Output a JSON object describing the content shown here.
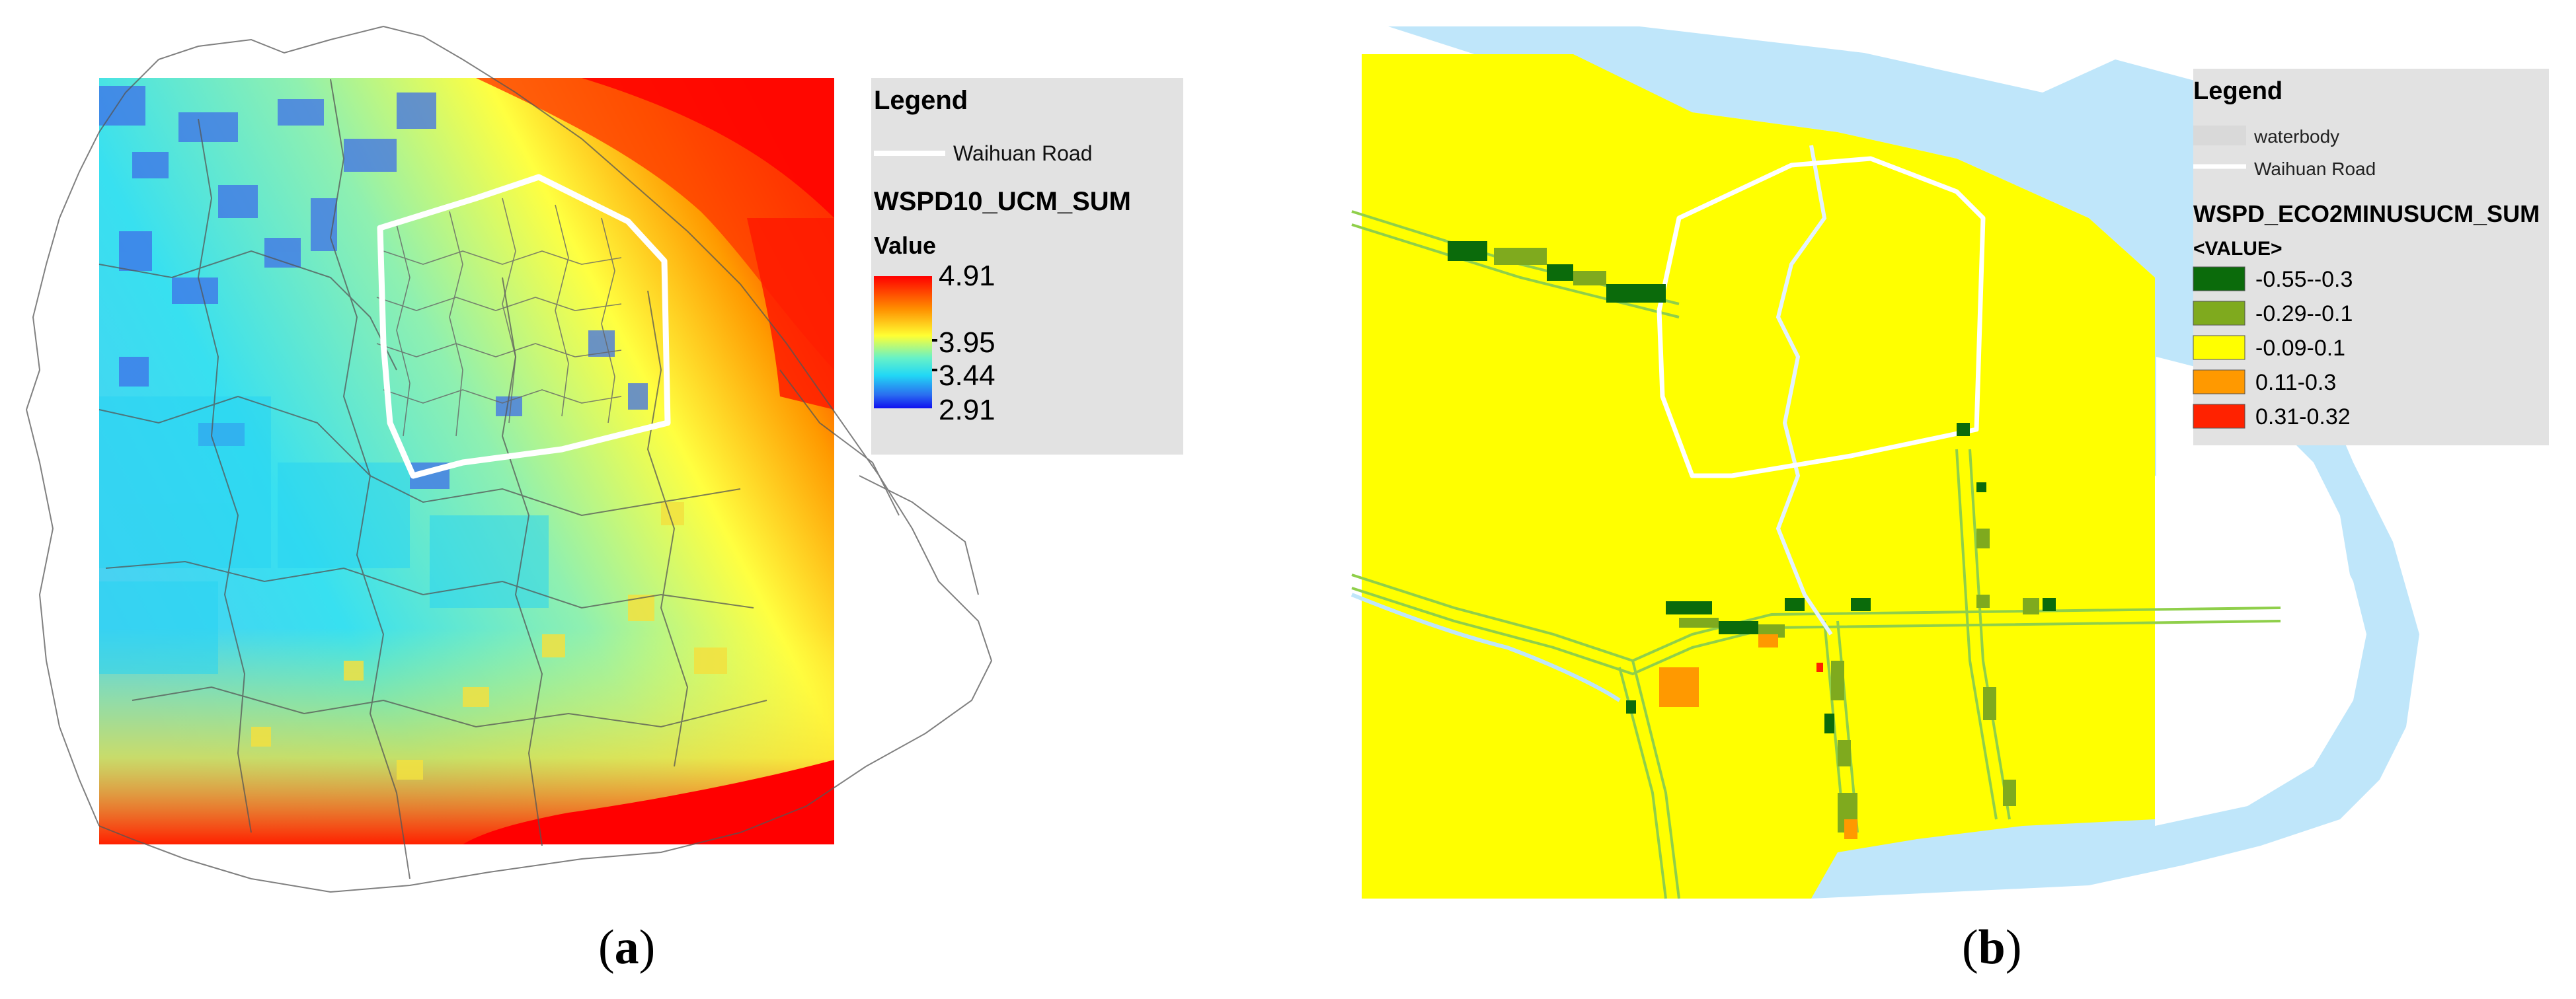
{
  "panels": [
    {
      "id": "a",
      "caption_letter": "a",
      "legend": {
        "title": "Legend",
        "line_item": "Waihuan Road",
        "layer_name": "WSPD10_UCM_SUM",
        "value_label": "Value",
        "ticks": [
          "4.91",
          "3.95",
          "3.44",
          "2.91"
        ],
        "gradient_colors": [
          "#ff0000",
          "#ff8c00",
          "#ffff33",
          "#66f2c8",
          "#22d8f5",
          "#2a6cf0",
          "#1010f0"
        ]
      }
    },
    {
      "id": "b",
      "caption_letter": "b",
      "legend": {
        "title": "Legend",
        "items": [
          "waterbody",
          "Waihuan Road"
        ],
        "layer_name": "WSPD_ECO2MINUSUCM_SUM",
        "value_label": "<VALUE>",
        "classes": [
          {
            "label": "-0.55--0.3",
            "color": "#0b6b0b"
          },
          {
            "label": "-0.29--0.1",
            "color": "#7faa1e"
          },
          {
            "label": "-0.09-0.1",
            "color": "#ffff00"
          },
          {
            "label": "0.11-0.3",
            "color": "#ff9900"
          },
          {
            "label": "0.31-0.32",
            "color": "#ff2200"
          }
        ],
        "water_color": "#bfe6fa",
        "road_color": "#ffffff"
      }
    }
  ]
}
